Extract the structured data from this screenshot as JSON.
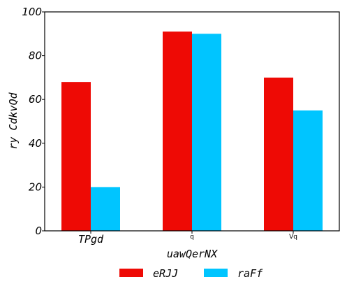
{
  "chart_data": {
    "type": "bar",
    "categories": [
      "TPgd",
      "q",
      "Vq"
    ],
    "series": [
      {
        "name": "eRJJ",
        "values": [
          68,
          91,
          70
        ],
        "color": "#ee0a05"
      },
      {
        "name": "raFf",
        "values": [
          20,
          90,
          55
        ],
        "color": "#00c5ff"
      }
    ],
    "xlabel": "uawQerNX",
    "ylabel": "ry CdkvQd",
    "ylim": [
      0,
      100
    ],
    "yticks": [
      0,
      20,
      40,
      60,
      80,
      100
    ],
    "grid": false,
    "legend_position": "bottom-center"
  }
}
